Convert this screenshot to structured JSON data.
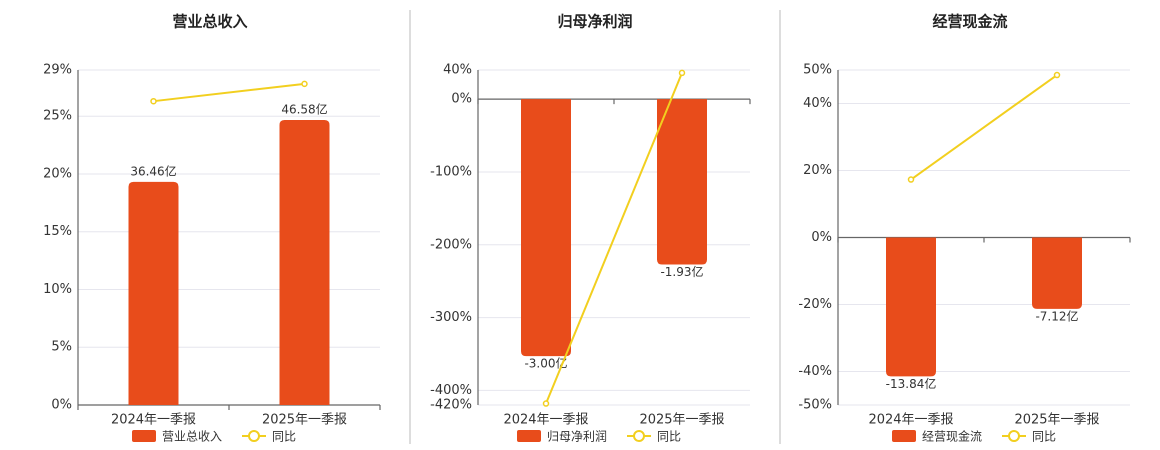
{
  "chart_data": [
    {
      "type": "bar",
      "title": "营业总收入",
      "categories": [
        "2024年一季报",
        "2025年一季报"
      ],
      "ylim": [
        0,
        29
      ],
      "yticks": [
        {
          "value": 0,
          "label": "0%"
        },
        {
          "value": 5,
          "label": "5%"
        },
        {
          "value": 10,
          "label": "10%"
        },
        {
          "value": 15,
          "label": "15%"
        },
        {
          "value": 20,
          "label": "20%"
        },
        {
          "value": 25,
          "label": "25%"
        },
        {
          "value": 29,
          "label": "29%"
        }
      ],
      "y2lim": [
        0,
        54.75
      ],
      "grid": true,
      "series": [
        {
          "name": "营业总收入",
          "color": "#e84c1b",
          "axis": "y2",
          "values": [
            36.46,
            46.58
          ],
          "value_labels": [
            "36.46亿",
            "46.58亿"
          ]
        },
        {
          "name": "同比",
          "type": "line",
          "color": "#f2cf1f",
          "values": [
            26.3,
            27.8
          ]
        }
      ]
    },
    {
      "type": "bar",
      "title": "归母净利润",
      "categories": [
        "2024年一季报",
        "2025年一季报"
      ],
      "ylim": [
        -420,
        40
      ],
      "yticks": [
        {
          "value": 40,
          "label": "40%"
        },
        {
          "value": 0,
          "label": "0%"
        },
        {
          "value": -100,
          "label": "-100%"
        },
        {
          "value": -200,
          "label": "-200%"
        },
        {
          "value": -300,
          "label": "-300%"
        },
        {
          "value": -400,
          "label": "-400%"
        },
        {
          "value": -420,
          "label": "-420%"
        }
      ],
      "y2lim": [
        -3.57,
        0.34
      ],
      "grid": true,
      "series": [
        {
          "name": "归母净利润",
          "color": "#e84c1b",
          "axis": "y2",
          "values": [
            -3.0,
            -1.93
          ],
          "value_labels": [
            "-3.00亿",
            "-1.93亿"
          ]
        },
        {
          "name": "同比",
          "type": "line",
          "color": "#f2cf1f",
          "values": [
            -418,
            36
          ]
        }
      ]
    },
    {
      "type": "bar",
      "title": "经营现金流",
      "categories": [
        "2024年一季报",
        "2025年一季报"
      ],
      "ylim": [
        -50,
        50
      ],
      "yticks": [
        {
          "value": 50,
          "label": "50%"
        },
        {
          "value": 40,
          "label": "40%"
        },
        {
          "value": 20,
          "label": "20%"
        },
        {
          "value": 0,
          "label": "0%"
        },
        {
          "value": -20,
          "label": "-20%"
        },
        {
          "value": -40,
          "label": "-40%"
        },
        {
          "value": -50,
          "label": "-50%"
        }
      ],
      "y2lim": [
        -16.7,
        16.7
      ],
      "grid": true,
      "series": [
        {
          "name": "经营现金流",
          "color": "#e84c1b",
          "axis": "y2",
          "values": [
            -13.84,
            -7.12
          ],
          "value_labels": [
            "-13.84亿",
            "-7.12亿"
          ]
        },
        {
          "name": "同比",
          "type": "line",
          "color": "#f2cf1f",
          "values": [
            17.3,
            48.5
          ]
        }
      ]
    }
  ]
}
